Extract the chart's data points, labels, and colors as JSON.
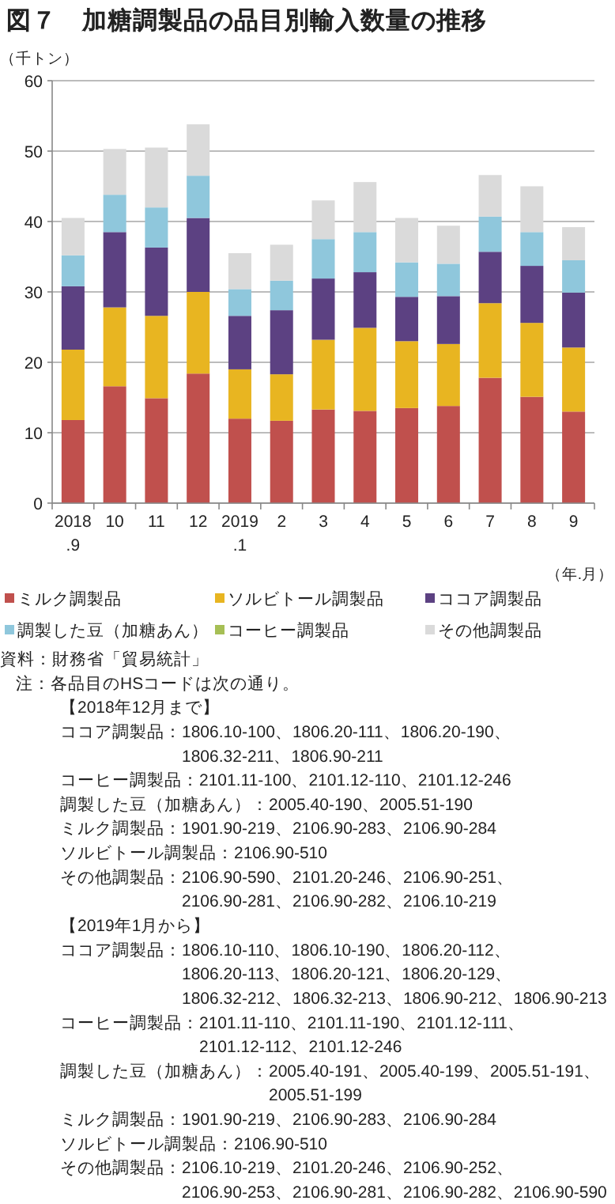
{
  "chart_data": {
    "type": "bar",
    "stacked": true,
    "title": "図７　加糖調製品の品目別輸入数量の推移",
    "ylabel": "（千トン）",
    "xlabel": "（年.月）",
    "categories": [
      "2018\n.9",
      "10",
      "11",
      "12",
      "2019\n.1",
      "2",
      "3",
      "4",
      "5",
      "6",
      "7",
      "8",
      "9"
    ],
    "series": [
      {
        "name": "ミルク調製品",
        "color": "#c0504d",
        "values": [
          11.8,
          16.6,
          14.9,
          18.4,
          12.0,
          11.7,
          13.3,
          13.1,
          13.5,
          13.8,
          17.8,
          15.1,
          13.0
        ]
      },
      {
        "name": "ソルビトール調製品",
        "color": "#e8b521",
        "values": [
          10.0,
          11.2,
          11.7,
          11.6,
          7.0,
          6.6,
          9.9,
          11.8,
          9.5,
          8.8,
          10.6,
          10.5,
          9.1
        ]
      },
      {
        "name": "ココア調製品",
        "color": "#5c4182",
        "values": [
          9.0,
          10.7,
          9.7,
          10.5,
          7.6,
          9.1,
          8.7,
          7.9,
          6.3,
          6.8,
          7.3,
          8.1,
          7.8
        ]
      },
      {
        "name": "調製した豆（加糖あん）",
        "color": "#8fc7dc",
        "values": [
          4.4,
          5.3,
          5.7,
          6.0,
          3.8,
          4.2,
          5.6,
          5.7,
          4.9,
          4.6,
          5.0,
          4.8,
          4.6
        ]
      },
      {
        "name": "コーヒー調製品",
        "color": "#a6bf55",
        "values": [
          null,
          null,
          null,
          null,
          null,
          null,
          null,
          null,
          null,
          null,
          null,
          null,
          null
        ]
      },
      {
        "name": "その他調製品",
        "color": "#dadada",
        "values": [
          5.3,
          6.5,
          8.5,
          7.3,
          5.1,
          5.1,
          5.5,
          7.1,
          6.3,
          5.4,
          5.9,
          6.5,
          4.7
        ]
      }
    ],
    "ylim": [
      0,
      60
    ],
    "yticks": [
      0,
      10,
      20,
      30,
      40,
      50,
      60
    ],
    "grid": "y",
    "legend": "bottom",
    "annotations": [
      "資料：財務省「貿易統計」",
      "注：各品目のHSコードは次の通り。",
      "【2018年12月まで】",
      "ココア調製品：1806.10-100、1806.20-111、1806.20-190、1806.32-211、1806.90-211",
      "コーヒー調製品：2101.11-100、2101.12-110、2101.12-246",
      "調製した豆（加糖あん）：2005.40-190、2005.51-190",
      "ミルク調製品：1901.90-219、2106.90-283、2106.90-284",
      "ソルビトール調製品：2106.90-510",
      "その他調製品：2106.90-590、2101.20-246、2106.90-251、2106.90-281、2106.90-282、2106.10-219",
      "【2019年1月から】",
      "ココア調製品：1806.10-110、1806.10-190、1806.20-112、1806.20-113、1806.20-121、1806.20-129、1806.32-212、1806.32-213、1806.90-212、1806.90-213",
      "コーヒー調製品：2101.11-110、2101.11-190、2101.12-111、2101.12-112、2101.12-246",
      "調製した豆（加糖あん）：2005.40-191、2005.40-199、2005.51-191、2005.51-199",
      "ミルク調製品：1901.90-219、2106.90-283、2106.90-284",
      "ソルビトール調製品：2106.90-510",
      "その他調製品：2106.10-219、2101.20-246、2106.90-252、2106.90-253、2106.90-281、2106.90-282、2106.90-590"
    ]
  }
}
